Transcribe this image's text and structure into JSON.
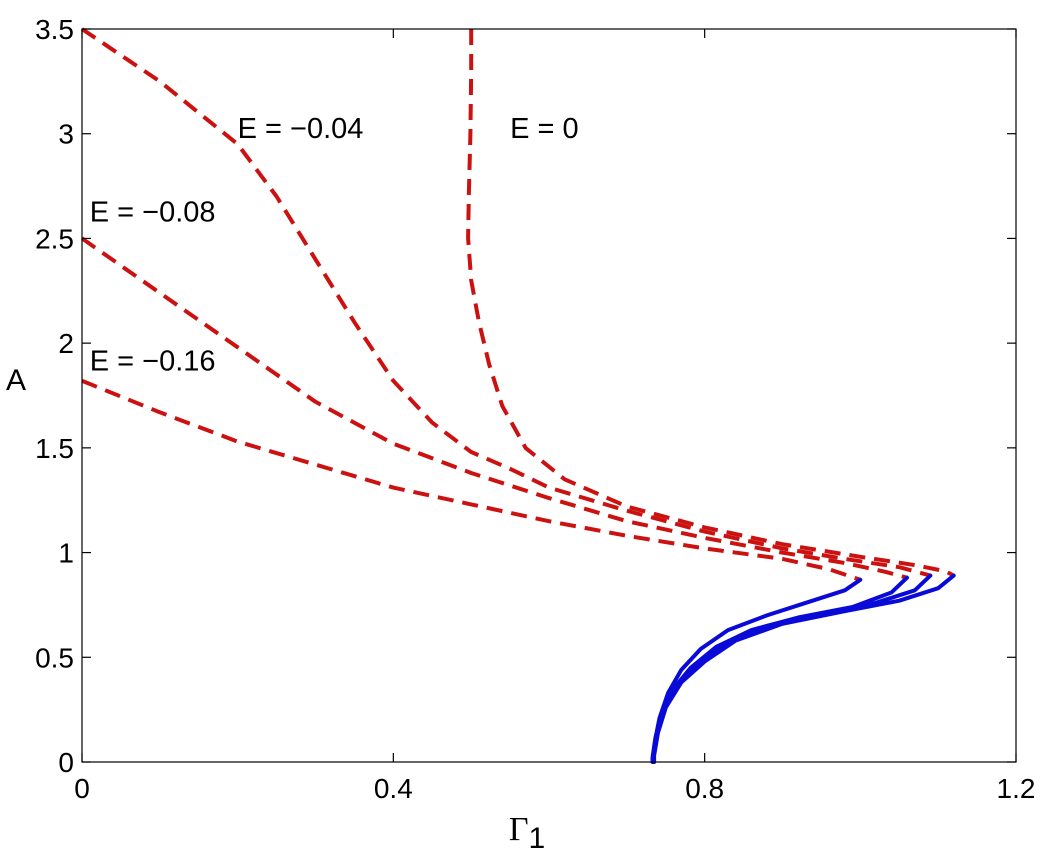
{
  "chart_data": {
    "type": "line",
    "title": "",
    "xlabel": "Γ",
    "xlabel_subscript": "1",
    "ylabel": "A",
    "xlim": [
      0,
      1.2
    ],
    "ylim": [
      0,
      3.5
    ],
    "x_ticks": [
      0,
      0.4,
      0.8,
      1.2
    ],
    "x_tick_labels": [
      "0",
      "0.4",
      "0.8",
      "1.2"
    ],
    "y_ticks": [
      0,
      0.5,
      1,
      1.5,
      2,
      2.5,
      3,
      3.5
    ],
    "y_tick_labels": [
      "0",
      "0.5",
      "1",
      "1.5",
      "2",
      "2.5",
      "3",
      "3.5"
    ],
    "grid": false,
    "colors": {
      "unstable": "#cc1111",
      "stable": "#0a0ad8"
    },
    "series": [
      {
        "style": "dashed",
        "color_key": "unstable",
        "points": [
          [
            0.5,
            3.5
          ],
          [
            0.5,
            3.3
          ],
          [
            0.499,
            3.0
          ],
          [
            0.497,
            2.7
          ],
          [
            0.496,
            2.5
          ],
          [
            0.5,
            2.3
          ],
          [
            0.51,
            2.1
          ],
          [
            0.523,
            1.9
          ],
          [
            0.54,
            1.7
          ],
          [
            0.57,
            1.5
          ],
          [
            0.62,
            1.35
          ],
          [
            0.7,
            1.22
          ],
          [
            0.8,
            1.12
          ],
          [
            0.9,
            1.04
          ],
          [
            1.0,
            0.98
          ],
          [
            1.07,
            0.94
          ],
          [
            1.11,
            0.91
          ],
          [
            1.12,
            0.89
          ]
        ]
      },
      {
        "style": "dashed",
        "color_key": "unstable",
        "points": [
          [
            0,
            3.5
          ],
          [
            0.1,
            3.25
          ],
          [
            0.2,
            2.95
          ],
          [
            0.25,
            2.7
          ],
          [
            0.3,
            2.4
          ],
          [
            0.35,
            2.1
          ],
          [
            0.4,
            1.82
          ],
          [
            0.45,
            1.62
          ],
          [
            0.5,
            1.48
          ],
          [
            0.55,
            1.4
          ],
          [
            0.6,
            1.31
          ],
          [
            0.7,
            1.2
          ],
          [
            0.8,
            1.1
          ],
          [
            0.9,
            1.02
          ],
          [
            0.98,
            0.97
          ],
          [
            1.05,
            0.93
          ],
          [
            1.09,
            0.89
          ]
        ]
      },
      {
        "style": "dashed",
        "color_key": "unstable",
        "points": [
          [
            0,
            2.5
          ],
          [
            0.1,
            2.24
          ],
          [
            0.2,
            1.98
          ],
          [
            0.3,
            1.72
          ],
          [
            0.4,
            1.52
          ],
          [
            0.45,
            1.45
          ],
          [
            0.5,
            1.38
          ],
          [
            0.6,
            1.26
          ],
          [
            0.7,
            1.15
          ],
          [
            0.8,
            1.07
          ],
          [
            0.9,
            1.0
          ],
          [
            0.98,
            0.95
          ],
          [
            1.03,
            0.91
          ],
          [
            1.06,
            0.88
          ]
        ]
      },
      {
        "style": "dashed",
        "color_key": "unstable",
        "points": [
          [
            0,
            1.82
          ],
          [
            0.1,
            1.67
          ],
          [
            0.2,
            1.53
          ],
          [
            0.3,
            1.42
          ],
          [
            0.4,
            1.31
          ],
          [
            0.5,
            1.23
          ],
          [
            0.6,
            1.15
          ],
          [
            0.7,
            1.08
          ],
          [
            0.8,
            1.02
          ],
          [
            0.9,
            0.97
          ],
          [
            0.96,
            0.92
          ],
          [
            1.0,
            0.87
          ]
        ]
      },
      {
        "style": "solid",
        "color_key": "stable",
        "points": [
          [
            1.12,
            0.89
          ],
          [
            1.1,
            0.83
          ],
          [
            1.05,
            0.77
          ],
          [
            0.98,
            0.72
          ],
          [
            0.9,
            0.66
          ],
          [
            0.84,
            0.58
          ],
          [
            0.8,
            0.48
          ],
          [
            0.77,
            0.38
          ],
          [
            0.75,
            0.26
          ],
          [
            0.74,
            0.14
          ],
          [
            0.735,
            0.03
          ],
          [
            0.735,
            0.0
          ]
        ]
      },
      {
        "style": "solid",
        "color_key": "stable",
        "points": [
          [
            1.09,
            0.89
          ],
          [
            1.07,
            0.82
          ],
          [
            1.02,
            0.76
          ],
          [
            0.95,
            0.71
          ],
          [
            0.88,
            0.65
          ],
          [
            0.83,
            0.57
          ],
          [
            0.79,
            0.47
          ],
          [
            0.765,
            0.37
          ],
          [
            0.748,
            0.25
          ],
          [
            0.738,
            0.13
          ],
          [
            0.734,
            0.03
          ],
          [
            0.734,
            0.0
          ]
        ]
      },
      {
        "style": "solid",
        "color_key": "stable",
        "points": [
          [
            1.06,
            0.88
          ],
          [
            1.04,
            0.81
          ],
          [
            0.99,
            0.74
          ],
          [
            0.92,
            0.69
          ],
          [
            0.86,
            0.63
          ],
          [
            0.815,
            0.55
          ],
          [
            0.782,
            0.45
          ],
          [
            0.76,
            0.35
          ],
          [
            0.745,
            0.23
          ],
          [
            0.737,
            0.12
          ],
          [
            0.734,
            0.03
          ],
          [
            0.734,
            0.0
          ]
        ]
      },
      {
        "style": "solid",
        "color_key": "stable",
        "points": [
          [
            1.0,
            0.87
          ],
          [
            0.98,
            0.82
          ],
          [
            0.93,
            0.76
          ],
          [
            0.88,
            0.7
          ],
          [
            0.83,
            0.63
          ],
          [
            0.795,
            0.54
          ],
          [
            0.77,
            0.44
          ],
          [
            0.753,
            0.33
          ],
          [
            0.742,
            0.21
          ],
          [
            0.736,
            0.1
          ],
          [
            0.733,
            0.02
          ],
          [
            0.733,
            0.0
          ]
        ]
      }
    ],
    "annotations": [
      {
        "text": "E = 0",
        "x": 0.55,
        "y": 2.98
      },
      {
        "text": "E = −0.04",
        "x": 0.2,
        "y": 2.98
      },
      {
        "text": "E = −0.08",
        "x": 0.01,
        "y": 2.58
      },
      {
        "text": "E = −0.16",
        "x": 0.01,
        "y": 1.87
      }
    ]
  }
}
